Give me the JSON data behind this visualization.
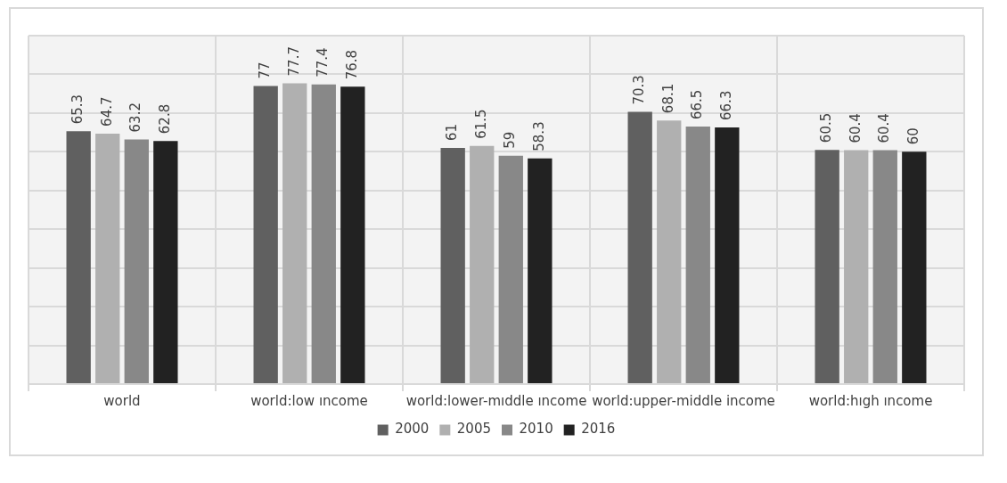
{
  "chart_data": {
    "type": "bar",
    "categories": [
      "world",
      "world:low ıncome",
      "world:lower-mıddle ıncome",
      "world:upper-middle income",
      "world:hıgh ıncome"
    ],
    "series": [
      {
        "name": "2000",
        "color": "#606060",
        "values": [
          65.3,
          77,
          61,
          70.3,
          60.5
        ]
      },
      {
        "name": "2005",
        "color": "#b0b0b0",
        "values": [
          64.7,
          77.7,
          61.5,
          68.1,
          60.4
        ]
      },
      {
        "name": "2010",
        "color": "#888888",
        "values": [
          63.2,
          77.4,
          59,
          66.5,
          60.4
        ]
      },
      {
        "name": "2016",
        "color": "#222222",
        "values": [
          62.8,
          76.8,
          58.3,
          66.3,
          60
        ]
      }
    ],
    "ylim": [
      0,
      90
    ],
    "yticks": [
      0,
      10,
      20,
      30,
      40,
      50,
      60,
      70,
      80,
      90
    ],
    "tick_labels": "x",
    "grid": true,
    "legend": "bottom",
    "data_labels": true
  }
}
